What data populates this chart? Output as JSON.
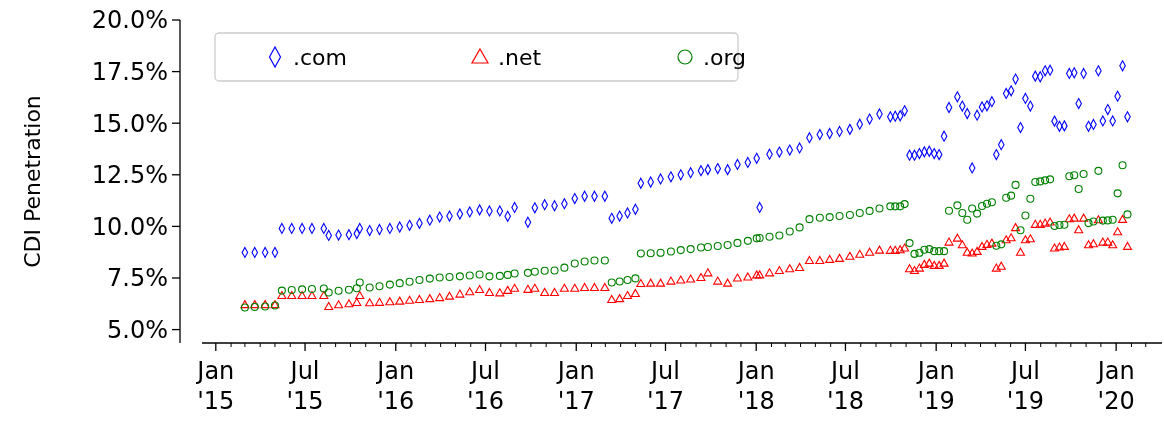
{
  "chart_data": {
    "type": "scatter",
    "ylabel": "CDI Penetration",
    "legend": "top left",
    "xlim": [
      "2014-12-04",
      "2020-04-03"
    ],
    "ylim": [
      4.35,
      20
    ],
    "yticks": [
      {
        "value": 5,
        "label": "5.0%"
      },
      {
        "value": 7.5,
        "label": "7.5%"
      },
      {
        "value": 10,
        "label": "10.0%"
      },
      {
        "value": 12.5,
        "label": "12.5%"
      },
      {
        "value": 15,
        "label": "15.0%"
      },
      {
        "value": 17.5,
        "label": "17.5%"
      },
      {
        "value": 20,
        "label": "20.0%"
      }
    ],
    "xticks": [
      {
        "value": "2015-01-01",
        "label": "Jan '15"
      },
      {
        "value": "2015-02-01",
        "label": null
      },
      {
        "value": "2015-03-01",
        "label": null
      },
      {
        "value": "2015-04-01",
        "label": null
      },
      {
        "value": "2015-05-01",
        "label": null
      },
      {
        "value": "2015-06-01",
        "label": null
      },
      {
        "value": "2015-07-01",
        "label": "Jul '15"
      },
      {
        "value": "2015-08-01",
        "label": null
      },
      {
        "value": "2015-09-01",
        "label": null
      },
      {
        "value": "2015-10-01",
        "label": null
      },
      {
        "value": "2015-11-01",
        "label": null
      },
      {
        "value": "2015-12-01",
        "label": null
      },
      {
        "value": "2016-01-01",
        "label": "Jan '16"
      },
      {
        "value": "2016-02-01",
        "label": null
      },
      {
        "value": "2016-03-01",
        "label": null
      },
      {
        "value": "2016-04-01",
        "label": null
      },
      {
        "value": "2016-05-01",
        "label": null
      },
      {
        "value": "2016-06-01",
        "label": null
      },
      {
        "value": "2016-07-01",
        "label": "Jul '16"
      },
      {
        "value": "2016-08-01",
        "label": null
      },
      {
        "value": "2016-09-01",
        "label": null
      },
      {
        "value": "2016-10-01",
        "label": null
      },
      {
        "value": "2016-11-01",
        "label": null
      },
      {
        "value": "2016-12-01",
        "label": null
      },
      {
        "value": "2017-01-01",
        "label": "Jan '17"
      },
      {
        "value": "2017-02-01",
        "label": null
      },
      {
        "value": "2017-03-01",
        "label": null
      },
      {
        "value": "2017-04-01",
        "label": null
      },
      {
        "value": "2017-05-01",
        "label": null
      },
      {
        "value": "2017-06-01",
        "label": null
      },
      {
        "value": "2017-07-01",
        "label": "Jul '17"
      },
      {
        "value": "2017-08-01",
        "label": null
      },
      {
        "value": "2017-09-01",
        "label": null
      },
      {
        "value": "2017-10-01",
        "label": null
      },
      {
        "value": "2017-11-01",
        "label": null
      },
      {
        "value": "2017-12-01",
        "label": null
      },
      {
        "value": "2018-01-01",
        "label": "Jan '18"
      },
      {
        "value": "2018-02-01",
        "label": null
      },
      {
        "value": "2018-03-01",
        "label": null
      },
      {
        "value": "2018-04-01",
        "label": null
      },
      {
        "value": "2018-05-01",
        "label": null
      },
      {
        "value": "2018-06-01",
        "label": null
      },
      {
        "value": "2018-07-01",
        "label": "Jul '18"
      },
      {
        "value": "2018-08-01",
        "label": null
      },
      {
        "value": "2018-09-01",
        "label": null
      },
      {
        "value": "2018-10-01",
        "label": null
      },
      {
        "value": "2018-11-01",
        "label": null
      },
      {
        "value": "2018-12-01",
        "label": null
      },
      {
        "value": "2019-01-01",
        "label": "Jan '19"
      },
      {
        "value": "2019-02-01",
        "label": null
      },
      {
        "value": "2019-03-01",
        "label": null
      },
      {
        "value": "2019-04-01",
        "label": null
      },
      {
        "value": "2019-05-01",
        "label": null
      },
      {
        "value": "2019-06-01",
        "label": null
      },
      {
        "value": "2019-07-01",
        "label": "Jul '19"
      },
      {
        "value": "2019-08-01",
        "label": null
      },
      {
        "value": "2019-09-01",
        "label": null
      },
      {
        "value": "2019-10-01",
        "label": null
      },
      {
        "value": "2019-11-01",
        "label": null
      },
      {
        "value": "2019-12-01",
        "label": null
      },
      {
        "value": "2020-01-01",
        "label": "Jan '20"
      },
      {
        "value": "2020-02-01",
        "label": null
      },
      {
        "value": "2020-03-01",
        "label": null
      }
    ],
    "x": [
      "2015-03-01",
      "2015-03-21",
      "2015-04-11",
      "2015-05-01",
      "2015-05-15",
      "2015-06-04",
      "2015-06-25",
      "2015-07-15",
      "2015-08-08",
      "2015-08-18",
      "2015-09-07",
      "2015-09-28",
      "2015-10-14",
      "2015-10-20",
      "2015-11-09",
      "2015-11-29",
      "2015-12-20",
      "2016-01-09",
      "2016-01-29",
      "2016-02-18",
      "2016-03-10",
      "2016-03-30",
      "2016-04-19",
      "2016-05-10",
      "2016-05-30",
      "2016-06-19",
      "2016-07-09",
      "2016-07-30",
      "2016-08-15",
      "2016-08-29",
      "2016-09-25",
      "2016-10-09",
      "2016-10-29",
      "2016-11-18",
      "2016-12-08",
      "2016-12-29",
      "2017-01-18",
      "2017-02-07",
      "2017-02-28",
      "2017-03-14",
      "2017-03-30",
      "2017-04-15",
      "2017-05-01",
      "2017-05-12",
      "2017-06-01",
      "2017-06-21",
      "2017-07-12",
      "2017-08-01",
      "2017-08-21",
      "2017-09-11",
      "2017-09-25",
      "2017-10-15",
      "2017-11-04",
      "2017-11-24",
      "2017-12-15",
      "2018-01-02",
      "2018-01-08",
      "2018-01-28",
      "2018-02-17",
      "2018-03-10",
      "2018-03-30",
      "2018-04-19",
      "2018-05-10",
      "2018-05-30",
      "2018-06-19",
      "2018-07-10",
      "2018-07-30",
      "2018-08-19",
      "2018-09-08",
      "2018-09-30",
      "2018-10-10",
      "2018-10-20",
      "2018-10-29",
      "2018-11-08",
      "2018-11-18",
      "2018-11-28",
      "2018-12-08",
      "2018-12-18",
      "2018-12-28",
      "2019-01-07",
      "2019-01-17",
      "2019-01-27",
      "2019-02-13",
      "2019-02-23",
      "2019-03-05",
      "2019-03-15",
      "2019-03-25",
      "2019-04-04",
      "2019-04-14",
      "2019-04-24",
      "2019-05-03",
      "2019-05-13",
      "2019-05-23",
      "2019-06-02",
      "2019-06-11",
      "2019-06-21",
      "2019-07-01",
      "2019-07-11",
      "2019-07-21",
      "2019-07-31",
      "2019-08-10",
      "2019-08-20",
      "2019-08-29",
      "2019-09-08",
      "2019-09-18",
      "2019-09-28",
      "2019-10-08",
      "2019-10-17",
      "2019-10-27",
      "2019-11-06",
      "2019-11-16",
      "2019-11-26",
      "2019-12-05",
      "2019-12-15",
      "2019-12-25",
      "2020-01-04",
      "2020-01-14",
      "2020-01-24"
    ],
    "series": [
      {
        "name": ".com",
        "color": "#0000ff",
        "marker": "diamond",
        "values": [
          8.74,
          8.74,
          8.74,
          8.74,
          9.9,
          9.9,
          9.9,
          9.9,
          9.9,
          9.56,
          9.58,
          9.6,
          9.65,
          9.9,
          9.8,
          9.85,
          9.9,
          9.97,
          10.05,
          10.15,
          10.3,
          10.45,
          10.5,
          10.6,
          10.7,
          10.8,
          10.75,
          10.75,
          10.49,
          10.92,
          10.2,
          10.9,
          11.05,
          11.0,
          11.1,
          11.35,
          11.46,
          11.46,
          11.46,
          10.39,
          10.5,
          10.65,
          10.83,
          12.09,
          12.15,
          12.3,
          12.4,
          12.5,
          12.6,
          12.7,
          12.75,
          12.8,
          12.75,
          13.0,
          13.1,
          13.3,
          10.92,
          13.5,
          13.6,
          13.7,
          13.8,
          14.3,
          14.45,
          14.5,
          14.6,
          14.7,
          14.95,
          15.2,
          15.45,
          15.31,
          15.34,
          15.36,
          15.6,
          13.45,
          13.45,
          13.53,
          13.61,
          13.64,
          13.53,
          13.48,
          14.37,
          15.76,
          16.28,
          15.83,
          15.47,
          12.83,
          15.39,
          15.79,
          15.84,
          16.04,
          13.48,
          13.96,
          16.44,
          16.57,
          17.14,
          14.79,
          16.2,
          15.83,
          17.28,
          17.25,
          17.54,
          17.57,
          15.1,
          14.85,
          14.87,
          17.41,
          17.44,
          15.95,
          17.41,
          14.85,
          14.94,
          17.54,
          15.11,
          15.66,
          15.11,
          16.31,
          17.78,
          15.31
        ]
      },
      {
        "name": ".net",
        "color": "#ff0000",
        "marker": "triangle",
        "values": [
          6.21,
          6.21,
          6.21,
          6.21,
          6.65,
          6.65,
          6.65,
          6.65,
          6.65,
          6.12,
          6.2,
          6.25,
          6.31,
          6.65,
          6.3,
          6.32,
          6.35,
          6.38,
          6.42,
          6.46,
          6.5,
          6.55,
          6.62,
          6.72,
          6.83,
          6.94,
          6.8,
          6.78,
          6.9,
          7.0,
          6.95,
          7.0,
          6.8,
          6.8,
          7.0,
          7.0,
          7.04,
          7.04,
          7.04,
          6.46,
          6.5,
          6.65,
          6.75,
          7.23,
          7.25,
          7.25,
          7.35,
          7.4,
          7.45,
          7.52,
          7.75,
          7.35,
          7.25,
          7.5,
          7.55,
          7.65,
          7.65,
          7.75,
          7.86,
          7.95,
          8.01,
          8.35,
          8.35,
          8.4,
          8.45,
          8.55,
          8.65,
          8.75,
          8.85,
          8.84,
          8.84,
          8.87,
          8.95,
          7.95,
          7.86,
          7.98,
          8.16,
          8.22,
          8.11,
          8.11,
          8.22,
          9.24,
          9.43,
          9.11,
          8.75,
          8.71,
          8.79,
          9.03,
          9.13,
          9.19,
          7.98,
          8.07,
          9.35,
          9.45,
          9.94,
          8.75,
          9.35,
          9.4,
          10.1,
          10.1,
          10.16,
          10.21,
          8.95,
          9.0,
          9.03,
          10.37,
          10.4,
          9.84,
          10.4,
          9.11,
          9.16,
          10.32,
          9.24,
          9.24,
          9.11,
          9.74,
          10.34,
          9.03
        ]
      },
      {
        "name": ".org",
        "color": "#008000",
        "marker": "circle",
        "values": [
          6.07,
          6.1,
          6.12,
          6.17,
          6.89,
          6.92,
          6.95,
          6.97,
          6.99,
          6.8,
          6.88,
          6.93,
          7.0,
          7.28,
          7.04,
          7.1,
          7.18,
          7.25,
          7.32,
          7.4,
          7.47,
          7.52,
          7.55,
          7.58,
          7.62,
          7.67,
          7.58,
          7.6,
          7.65,
          7.72,
          7.75,
          7.8,
          7.85,
          7.86,
          8.0,
          8.2,
          8.3,
          8.35,
          8.35,
          7.28,
          7.33,
          7.4,
          7.48,
          8.69,
          8.7,
          8.72,
          8.78,
          8.85,
          8.9,
          8.98,
          9.0,
          9.05,
          9.1,
          9.2,
          9.3,
          9.42,
          9.44,
          9.5,
          9.56,
          9.75,
          9.95,
          10.35,
          10.42,
          10.45,
          10.5,
          10.55,
          10.65,
          10.75,
          10.87,
          10.97,
          10.97,
          10.97,
          11.08,
          9.19,
          8.67,
          8.72,
          8.87,
          8.9,
          8.8,
          8.8,
          8.8,
          10.76,
          11.02,
          10.65,
          10.32,
          10.87,
          10.62,
          10.99,
          11.1,
          11.17,
          9.06,
          9.13,
          11.39,
          11.49,
          12.01,
          9.81,
          10.53,
          11.34,
          12.15,
          12.18,
          12.23,
          12.28,
          10.02,
          10.07,
          10.08,
          12.43,
          12.48,
          11.81,
          12.54,
          10.16,
          10.24,
          12.69,
          10.28,
          10.29,
          10.32,
          11.6,
          12.96,
          10.58
        ]
      }
    ]
  }
}
